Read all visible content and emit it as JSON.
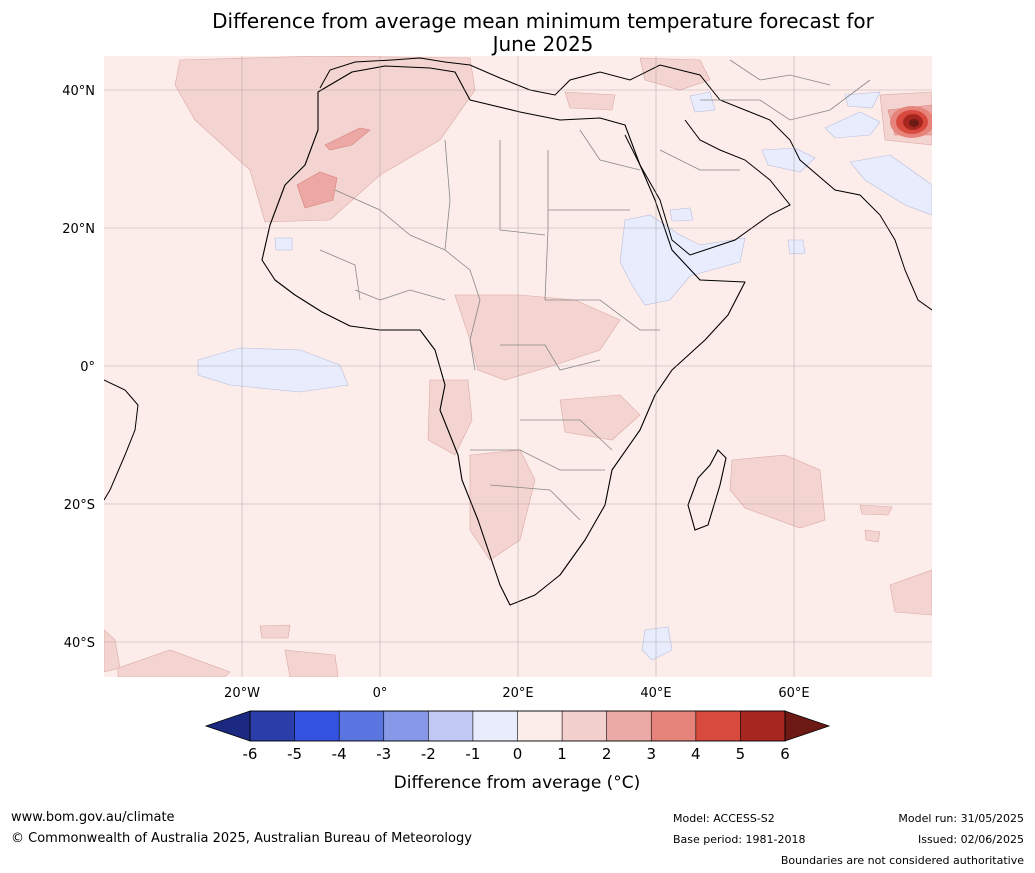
{
  "title_line1": "Difference from average mean minimum temperature forecast for",
  "title_line2": "June 2025",
  "lat_labels": [
    "40°N",
    "20°N",
    "0°",
    "20°S",
    "40°S"
  ],
  "lon_labels": [
    "20°W",
    "0°",
    "20°E",
    "40°E",
    "60°E"
  ],
  "colorbar": {
    "label": "Difference from average (°C)",
    "ticks": [
      "-6",
      "-5",
      "-4",
      "-3",
      "-2",
      "-1",
      "0",
      "1",
      "2",
      "3",
      "4",
      "5",
      "6"
    ],
    "colors": {
      "under": "#1b2a80",
      "bins": [
        "#2a3da8",
        "#3352e0",
        "#5a74e0",
        "#8898e8",
        "#c0c8f4",
        "#e8ecfc",
        "#fcecea",
        "#f4d0cc",
        "#ecaaa6",
        "#e6847c",
        "#d84a3e",
        "#a82620"
      ],
      "over": "#6e1a14"
    }
  },
  "footer": {
    "website": "www.bom.gov.au/climate",
    "copyright": "© Commonwealth of Australia 2025, Australian Bureau of Meteorology",
    "model": "Model: ACCESS-S2",
    "base_period": "Base period: 1981-2018",
    "model_run": "Model run: 31/05/2025",
    "issued": "Issued: 02/06/2025",
    "disclaimer": "Boundaries are not considered authoritative"
  }
}
